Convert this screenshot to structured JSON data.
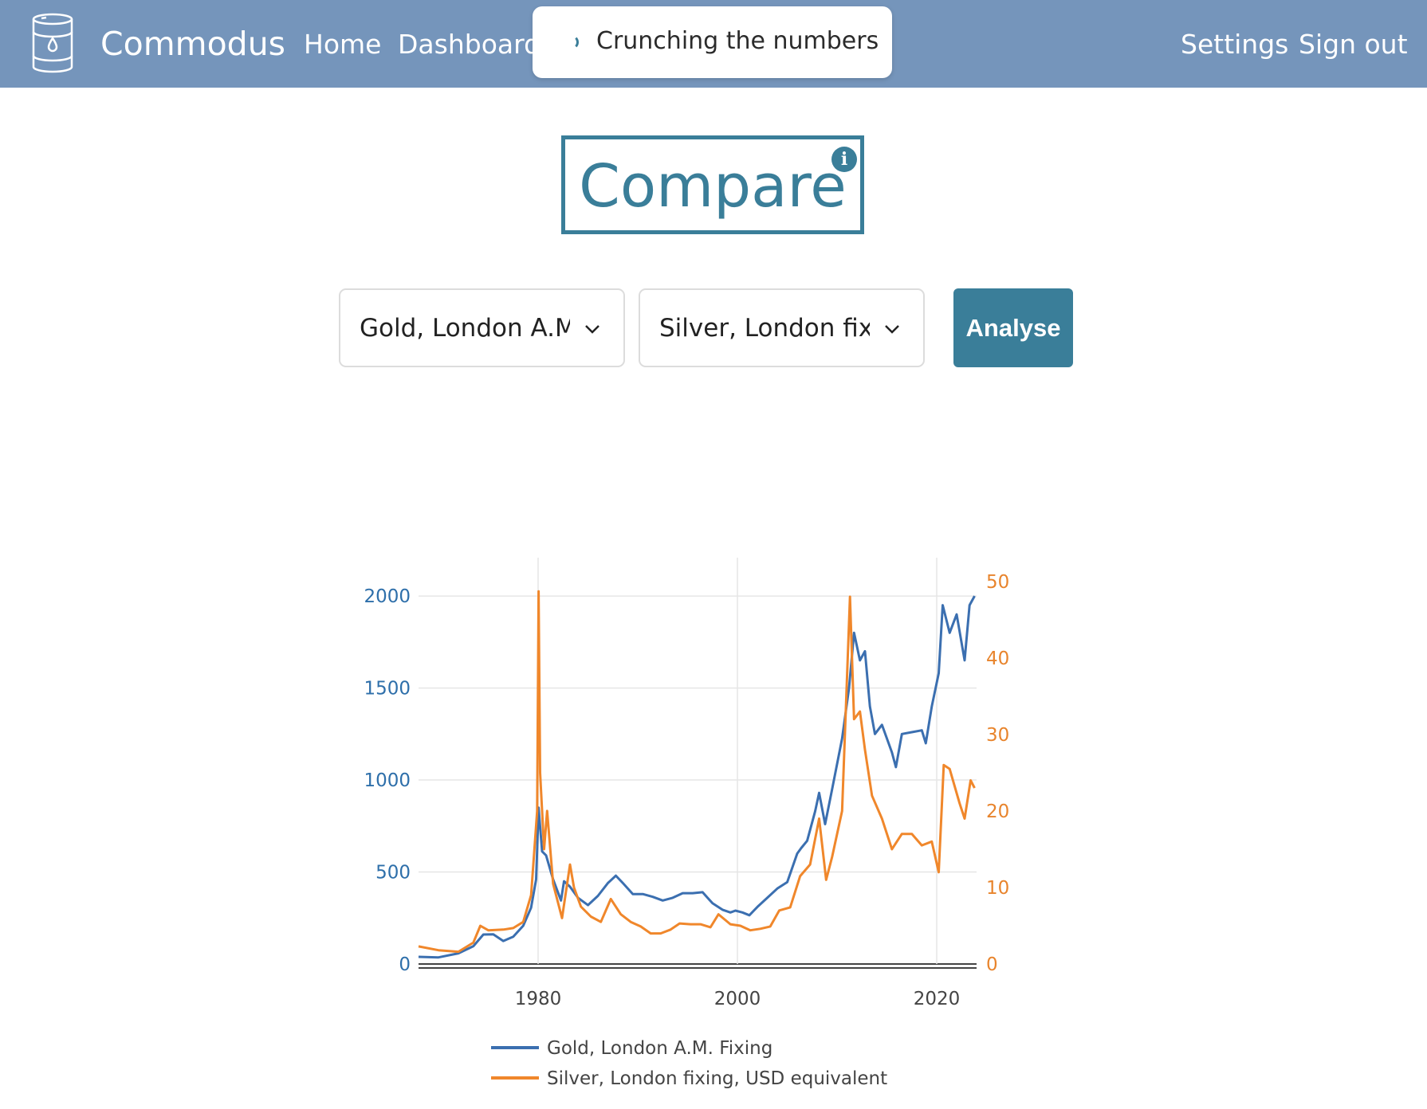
{
  "nav": {
    "brand": "Commodus",
    "links": [
      "Home",
      "Dashboard"
    ],
    "right_links": [
      "Settings",
      "Sign out"
    ],
    "colors": {
      "bar": "#7595bb",
      "text": "#ffffff"
    },
    "brand_icon": "barrel-icon"
  },
  "toast": {
    "message": "Crunching the numbers",
    "icon": "spinner-icon"
  },
  "page": {
    "title": "Compare",
    "info_icon": "info-icon",
    "accent": "#3a7e99"
  },
  "controls": {
    "select_1": "Gold, London A.M.",
    "select_2": "Silver, London fixin",
    "button": "Analyse"
  },
  "chart_data": {
    "type": "line",
    "x_ticks": [
      "1980",
      "2000",
      "2020"
    ],
    "xlim": [
      1968,
      2024
    ],
    "left_axis": {
      "ticks": [
        "0",
        "500",
        "1000",
        "1500",
        "2000"
      ],
      "ylim": [
        0,
        2100
      ],
      "color": "#2e6faa"
    },
    "right_axis": {
      "ticks": [
        "0",
        "10",
        "20",
        "30",
        "40",
        "50"
      ],
      "ylim": [
        0,
        50.5
      ],
      "color": "#e8842c"
    },
    "grid": true,
    "legend_position": "bottom",
    "series": [
      {
        "name": "Gold, London A.M. Fixing",
        "axis": "left",
        "color": "#3b6fb0",
        "x": [
          1968,
          1970,
          1972,
          1973.5,
          1974.5,
          1975.5,
          1976.5,
          1977.5,
          1978.5,
          1979.3,
          1979.8,
          1980.05,
          1980.4,
          1980.8,
          1981.5,
          1982.3,
          1982.6,
          1983.2,
          1984,
          1985,
          1986,
          1987,
          1987.8,
          1988.5,
          1989.5,
          1990.5,
          1991.5,
          1992.5,
          1993.5,
          1994.5,
          1995.5,
          1996.5,
          1997.5,
          1998.5,
          1999.3,
          1999.8,
          2000.5,
          2001.2,
          2002,
          2003,
          2004,
          2005,
          2006,
          2006.4,
          2007,
          2007.8,
          2008.2,
          2008.8,
          2009.5,
          2010.5,
          2011.2,
          2011.7,
          2012.3,
          2012.8,
          2013.3,
          2013.8,
          2014.5,
          2015.5,
          2015.9,
          2016.5,
          2017.5,
          2018.5,
          2018.9,
          2019.5,
          2020.2,
          2020.6,
          2021.3,
          2022,
          2022.8,
          2023.3,
          2023.8
        ],
        "y": [
          39,
          36,
          58,
          97,
          160,
          161,
          125,
          148,
          208,
          306,
          460,
          850,
          612,
          590,
          460,
          345,
          450,
          420,
          360,
          320,
          370,
          440,
          480,
          440,
          380,
          380,
          365,
          345,
          360,
          385,
          385,
          390,
          330,
          295,
          280,
          290,
          280,
          265,
          310,
          360,
          410,
          445,
          600,
          630,
          670,
          830,
          930,
          760,
          950,
          1225,
          1500,
          1800,
          1650,
          1700,
          1400,
          1250,
          1300,
          1150,
          1070,
          1250,
          1260,
          1270,
          1200,
          1400,
          1580,
          1950,
          1800,
          1900,
          1650,
          1950,
          2000
        ]
      },
      {
        "name": "Silver, London fixing, USD equivalent",
        "axis": "right",
        "color": "#f0872b",
        "x": [
          1968,
          1970,
          1972,
          1973.5,
          1974.2,
          1975,
          1976.5,
          1977.5,
          1978.5,
          1979.3,
          1979.9,
          1980.05,
          1980.2,
          1980.6,
          1980.9,
          1981.5,
          1982.4,
          1983.2,
          1983.6,
          1984.3,
          1985.3,
          1986.3,
          1987.3,
          1988.3,
          1989.3,
          1990.3,
          1991.3,
          1992.3,
          1993.3,
          1994.2,
          1995.3,
          1996.3,
          1997.3,
          1998.1,
          1999.3,
          2000.3,
          2001.3,
          2002.3,
          2003.3,
          2004.2,
          2005.3,
          2006.3,
          2007.3,
          2008.2,
          2008.9,
          2009.5,
          2010.5,
          2011.3,
          2011.7,
          2012.3,
          2012.8,
          2013.5,
          2014.5,
          2015.5,
          2016.5,
          2017.5,
          2018.5,
          2019.5,
          2020.2,
          2020.7,
          2021.3,
          2022.3,
          2022.8,
          2023.4,
          2023.8
        ],
        "y": [
          2.3,
          1.8,
          1.6,
          2.8,
          5.0,
          4.4,
          4.5,
          4.7,
          5.5,
          9.0,
          20.0,
          48.7,
          25.0,
          15.0,
          20.0,
          10.5,
          6.0,
          13.0,
          10.0,
          7.5,
          6.2,
          5.5,
          8.5,
          6.5,
          5.5,
          4.9,
          4.0,
          4.0,
          4.5,
          5.3,
          5.2,
          5.2,
          4.8,
          6.5,
          5.2,
          5.0,
          4.4,
          4.6,
          4.9,
          7.0,
          7.4,
          11.5,
          13.0,
          19.0,
          11.0,
          14.0,
          20.0,
          48.0,
          32.0,
          33.0,
          28.0,
          22.0,
          19.0,
          15.0,
          17.0,
          17.0,
          15.5,
          16.0,
          12.0,
          26.0,
          25.5,
          21.0,
          19.0,
          24.0,
          23.0
        ]
      }
    ]
  }
}
